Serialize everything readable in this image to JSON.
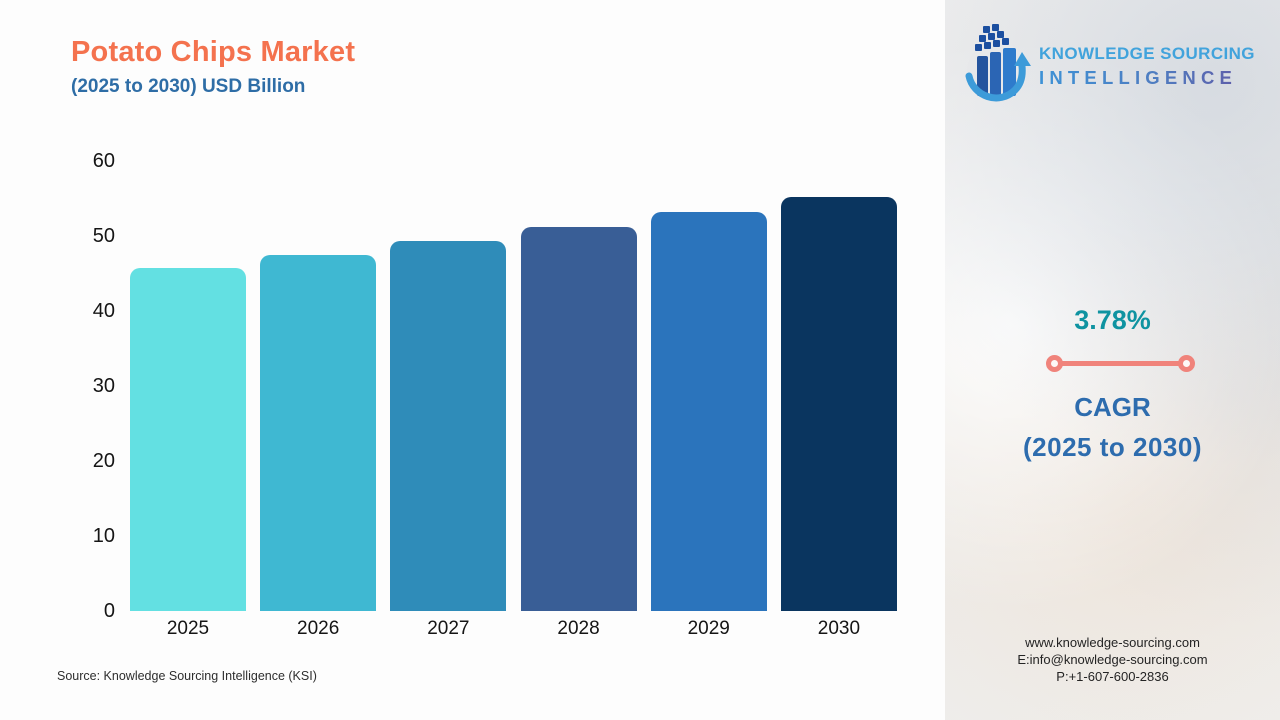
{
  "title": "Potato Chips Market",
  "subtitle": "(2025 to 2030) USD Billion",
  "source": "Source: Knowledge Sourcing Intelligence (KSI)",
  "logo": {
    "line1": "KNOWLEDGE SOURCING",
    "line2": "INTELLIGENCE"
  },
  "cagr": {
    "value": "3.78%",
    "label1": "CAGR",
    "label2": "(2025 to 2030)"
  },
  "contact": {
    "website": "www.knowledge-sourcing.com",
    "email": "E:info@knowledge-sourcing.com",
    "phone": "P:+1-607-600-2836"
  },
  "chart_data": {
    "type": "bar",
    "title": "Potato Chips Market (2025 to 2030) USD Billion",
    "categories": [
      "2025",
      "2026",
      "2027",
      "2028",
      "2029",
      "2030"
    ],
    "values": [
      45.8,
      47.5,
      49.3,
      51.2,
      53.2,
      55.2
    ],
    "bar_colors": [
      "#63E0E2",
      "#3FB8D2",
      "#2F8CB9",
      "#395E96",
      "#2B74BC",
      "#0A355F"
    ],
    "xlabel": "",
    "ylabel": "",
    "ylim": [
      0,
      60
    ],
    "yticks": [
      0,
      10,
      20,
      30,
      40,
      50,
      60
    ],
    "grid": false,
    "legend": false
  },
  "colors": {
    "title": "#F4724E",
    "subtitle": "#2E6DA6",
    "cagr_value": "#0F93A1",
    "cagr_label": "#2D6CAE",
    "cagr_line": "#F0837B",
    "logo_blue": "#41A3DC"
  }
}
